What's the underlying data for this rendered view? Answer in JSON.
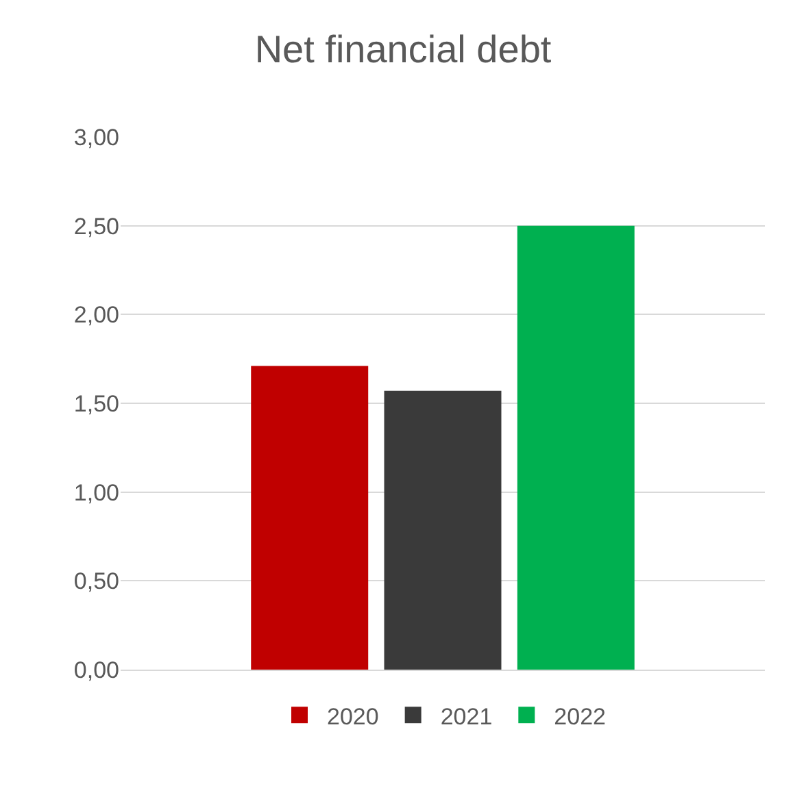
{
  "chart_data": {
    "type": "bar",
    "title": "Net financial debt",
    "categories": [
      null
    ],
    "series": [
      {
        "name": "2020",
        "color": "#c00000",
        "values": [
          1.71
        ]
      },
      {
        "name": "2021",
        "color": "#3a3a3a",
        "values": [
          1.57
        ]
      },
      {
        "name": "2022",
        "color": "#00b050",
        "values": [
          2.5
        ]
      }
    ],
    "ylim": [
      0,
      3
    ],
    "yticks": [
      {
        "value": 0,
        "label": "0,00"
      },
      {
        "value": 0.5,
        "label": "0,50"
      },
      {
        "value": 1,
        "label": "1,00"
      },
      {
        "value": 1.5,
        "label": "1,50"
      },
      {
        "value": 2,
        "label": "2,00"
      },
      {
        "value": 2.5,
        "label": "2,50"
      },
      {
        "value": 3,
        "label": "3,00"
      }
    ],
    "grid": "y",
    "legend": "bottom"
  }
}
